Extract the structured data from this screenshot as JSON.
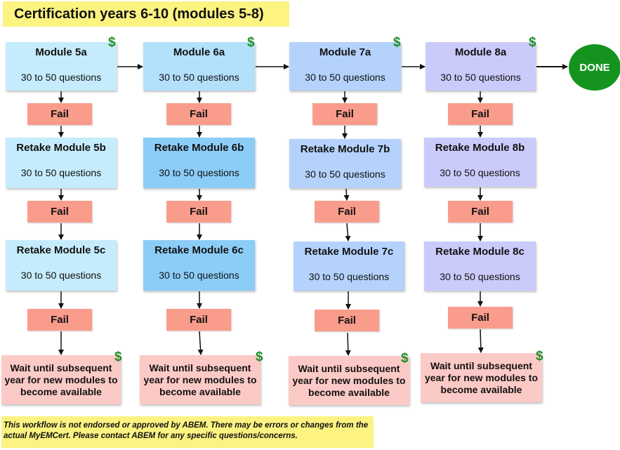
{
  "title": "Certification years 6-10 (modules 5-8)",
  "done_label": "DONE",
  "dollar_sign": "$",
  "fail_label": "Fail",
  "questions_label": "30 to 50 questions",
  "wait_text": "Wait until subsequent year for new modules to become available",
  "disclaimer": "This workflow is not endorsed or approved by ABEM. There may be errors or changes from the actual MyEMCert. Please contact ABEM for any specific questions/concerns.",
  "colors": {
    "title_bg": "#fcf381",
    "fail_bg": "#fa9c8b",
    "wait_bg": "#fccac6",
    "done_bg": "#14941f",
    "dollar": "#1f8f2a",
    "col5": "#c5ecfc",
    "col6": "#b3e0fb",
    "col6_retake": "#8ccdf8",
    "col7": "#b4d2fb",
    "col8": "#cbcbfb"
  },
  "columns": [
    {
      "a": "Module 5a",
      "b": "Retake Module 5b",
      "c": "Retake Module 5c"
    },
    {
      "a": "Module 6a",
      "b": "Retake Module 6b",
      "c": "Retake Module 6c"
    },
    {
      "a": "Module 7a",
      "b": "Retake Module 7b",
      "c": "Retake Module 7c"
    },
    {
      "a": "Module 8a",
      "b": "Retake Module 8b",
      "c": "Retake Module 8c"
    }
  ]
}
